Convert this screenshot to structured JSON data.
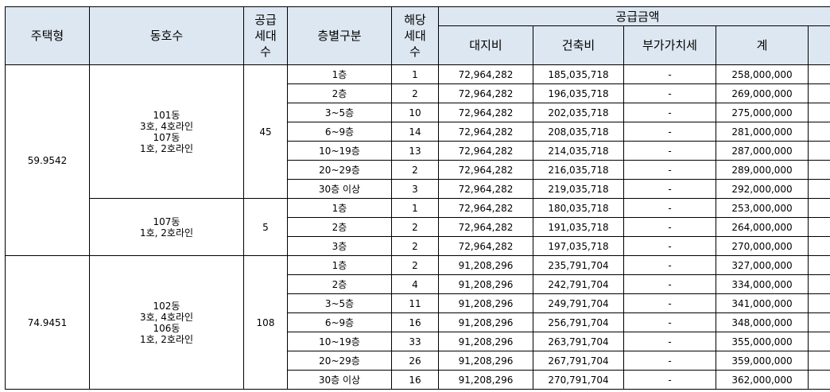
{
  "header": {
    "housing_type": "주택형",
    "dong_ho": "동호수",
    "supply_units": "공급\n세대\n수",
    "floor_division": "층별구분",
    "applicable_units": "해당\n세대\n수",
    "supply_amount": "공급금액",
    "land_cost": "대지비",
    "building_cost": "건축비",
    "vat": "부가가치세",
    "total": "계"
  },
  "sections": [
    {
      "type": "59.9542",
      "groups": [
        {
          "dong": "101동\n3호, 4호라인\n107동\n1호, 2호라인",
          "units": "45",
          "rows": [
            {
              "floor": "1층",
              "count": "1",
              "land": "72,964,282",
              "building": "185,035,718",
              "vat": "-",
              "total": "258,000,000"
            },
            {
              "floor": "2층",
              "count": "2",
              "land": "72,964,282",
              "building": "196,035,718",
              "vat": "-",
              "total": "269,000,000"
            },
            {
              "floor": "3~5층",
              "count": "10",
              "land": "72,964,282",
              "building": "202,035,718",
              "vat": "-",
              "total": "275,000,000"
            },
            {
              "floor": "6~9층",
              "count": "14",
              "land": "72,964,282",
              "building": "208,035,718",
              "vat": "-",
              "total": "281,000,000"
            },
            {
              "floor": "10~19층",
              "count": "13",
              "land": "72,964,282",
              "building": "214,035,718",
              "vat": "-",
              "total": "287,000,000"
            },
            {
              "floor": "20~29층",
              "count": "2",
              "land": "72,964,282",
              "building": "216,035,718",
              "vat": "-",
              "total": "289,000,000"
            },
            {
              "floor": "30층 이상",
              "count": "3",
              "land": "72,964,282",
              "building": "219,035,718",
              "vat": "-",
              "total": "292,000,000"
            }
          ]
        },
        {
          "dong": "107동\n1호, 2호라인",
          "units": "5",
          "rows": [
            {
              "floor": "1층",
              "count": "1",
              "land": "72,964,282",
              "building": "180,035,718",
              "vat": "-",
              "total": "253,000,000"
            },
            {
              "floor": "2층",
              "count": "2",
              "land": "72,964,282",
              "building": "191,035,718",
              "vat": "-",
              "total": "264,000,000"
            },
            {
              "floor": "3층",
              "count": "2",
              "land": "72,964,282",
              "building": "197,035,718",
              "vat": "-",
              "total": "270,000,000"
            }
          ]
        }
      ]
    },
    {
      "type": "74.9451",
      "groups": [
        {
          "dong": "102동\n3호, 4호라인\n106동\n1호, 2호라인",
          "units": "108",
          "rows": [
            {
              "floor": "1층",
              "count": "2",
              "land": "91,208,296",
              "building": "235,791,704",
              "vat": "-",
              "total": "327,000,000"
            },
            {
              "floor": "2층",
              "count": "4",
              "land": "91,208,296",
              "building": "242,791,704",
              "vat": "-",
              "total": "334,000,000"
            },
            {
              "floor": "3~5층",
              "count": "11",
              "land": "91,208,296",
              "building": "249,791,704",
              "vat": "-",
              "total": "341,000,000"
            },
            {
              "floor": "6~9층",
              "count": "16",
              "land": "91,208,296",
              "building": "256,791,704",
              "vat": "-",
              "total": "348,000,000"
            },
            {
              "floor": "10~19층",
              "count": "33",
              "land": "91,208,296",
              "building": "263,791,704",
              "vat": "-",
              "total": "355,000,000"
            },
            {
              "floor": "20~29층",
              "count": "26",
              "land": "91,208,296",
              "building": "267,791,704",
              "vat": "-",
              "total": "359,000,000"
            },
            {
              "floor": "30층 이상",
              "count": "16",
              "land": "91,208,296",
              "building": "270,791,704",
              "vat": "-",
              "total": "362,000,000"
            }
          ]
        }
      ]
    }
  ]
}
